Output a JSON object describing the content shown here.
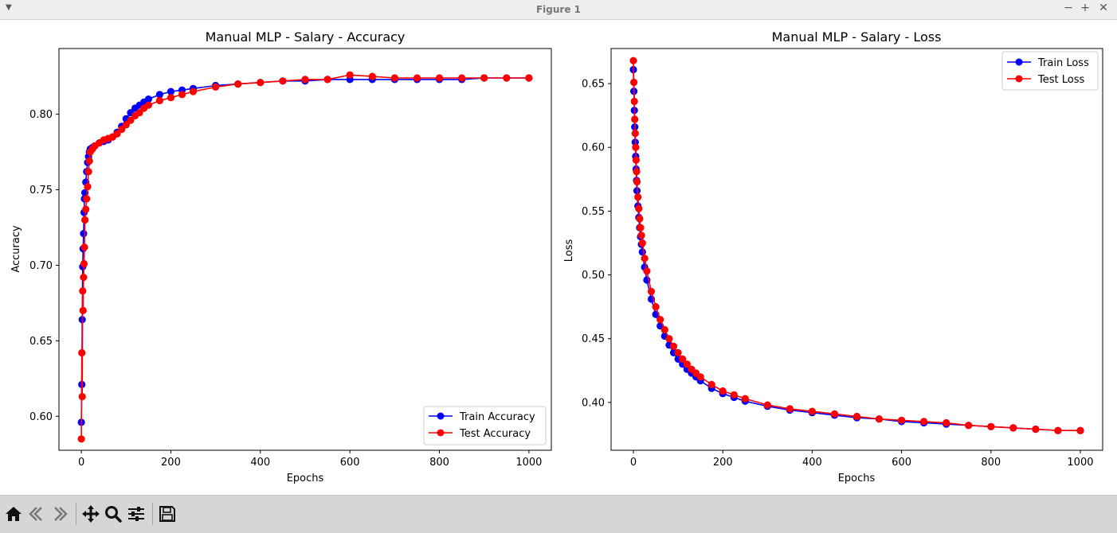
{
  "window": {
    "title": "Figure 1",
    "menu_icon": "chevron-down-icon",
    "buttons": [
      {
        "name": "minimize-button",
        "glyph": "−"
      },
      {
        "name": "maximize-button",
        "glyph": "+"
      },
      {
        "name": "close-button",
        "glyph": "✕"
      }
    ]
  },
  "toolbar": {
    "tools": [
      {
        "name": "home-button",
        "icon": "home-icon"
      },
      {
        "name": "back-button",
        "icon": "arrow-left-icon"
      },
      {
        "name": "forward-button",
        "icon": "arrow-right-icon"
      },
      {
        "name": "pan-button",
        "icon": "move-icon"
      },
      {
        "name": "zoom-button",
        "icon": "magnifier-icon"
      },
      {
        "name": "configure-subplots-button",
        "icon": "sliders-icon"
      },
      {
        "name": "save-button",
        "icon": "floppy-disk-icon"
      }
    ]
  },
  "colors": {
    "train": "#0000ff",
    "test": "#ff0000"
  },
  "chart_data": [
    {
      "type": "line",
      "title": "Manual MLP - Salary - Accuracy",
      "xlabel": "Epochs",
      "ylabel": "Accuracy",
      "xlim": [
        -50,
        1050
      ],
      "ylim": [
        0.5775,
        0.8435
      ],
      "xticks": [
        0,
        200,
        400,
        600,
        800,
        1000
      ],
      "xtick_labels": [
        "0",
        "200",
        "400",
        "600",
        "800",
        "1000"
      ],
      "yticks": [
        0.6,
        0.65,
        0.7,
        0.75,
        0.8
      ],
      "ytick_labels": [
        "0.60",
        "0.65",
        "0.70",
        "0.75",
        "0.80"
      ],
      "legend_position": "lower right",
      "grid": false,
      "series": [
        {
          "name": "Train Accuracy",
          "x": [
            0,
            1,
            2,
            3,
            4,
            5,
            6,
            7,
            8,
            10,
            12,
            14,
            16,
            18,
            20,
            25,
            30,
            40,
            50,
            60,
            70,
            80,
            90,
            100,
            110,
            120,
            130,
            140,
            150,
            175,
            200,
            225,
            250,
            300,
            350,
            400,
            450,
            500,
            550,
            600,
            650,
            700,
            750,
            800,
            850,
            900,
            950,
            1000
          ],
          "y": [
            0.596,
            0.621,
            0.664,
            0.699,
            0.711,
            0.721,
            0.735,
            0.744,
            0.748,
            0.755,
            0.762,
            0.768,
            0.772,
            0.775,
            0.777,
            0.778,
            0.779,
            0.781,
            0.782,
            0.783,
            0.785,
            0.788,
            0.792,
            0.797,
            0.801,
            0.804,
            0.806,
            0.808,
            0.81,
            0.813,
            0.815,
            0.816,
            0.817,
            0.819,
            0.82,
            0.821,
            0.822,
            0.822,
            0.823,
            0.823,
            0.823,
            0.823,
            0.823,
            0.823,
            0.823,
            0.824,
            0.824,
            0.824
          ]
        },
        {
          "name": "Test Accuracy",
          "x": [
            0,
            1,
            2,
            3,
            4,
            5,
            6,
            7,
            8,
            10,
            12,
            14,
            16,
            18,
            20,
            25,
            30,
            40,
            50,
            60,
            70,
            80,
            90,
            100,
            110,
            120,
            130,
            140,
            150,
            175,
            200,
            225,
            250,
            300,
            350,
            400,
            450,
            500,
            550,
            600,
            650,
            700,
            750,
            800,
            850,
            900,
            950,
            1000
          ],
          "y": [
            0.585,
            0.642,
            0.613,
            0.683,
            0.67,
            0.692,
            0.701,
            0.712,
            0.73,
            0.737,
            0.744,
            0.752,
            0.762,
            0.769,
            0.775,
            0.777,
            0.779,
            0.781,
            0.783,
            0.784,
            0.785,
            0.787,
            0.79,
            0.793,
            0.796,
            0.799,
            0.801,
            0.804,
            0.806,
            0.809,
            0.811,
            0.813,
            0.815,
            0.818,
            0.82,
            0.821,
            0.822,
            0.823,
            0.823,
            0.826,
            0.825,
            0.824,
            0.824,
            0.824,
            0.824,
            0.824,
            0.824,
            0.824
          ]
        }
      ]
    },
    {
      "type": "line",
      "title": "Manual MLP - Salary - Loss",
      "xlabel": "Epochs",
      "ylabel": "Loss",
      "xlim": [
        -50,
        1050
      ],
      "ylim": [
        0.3625,
        0.6775
      ],
      "xticks": [
        0,
        200,
        400,
        600,
        800,
        1000
      ],
      "xtick_labels": [
        "0",
        "200",
        "400",
        "600",
        "800",
        "1000"
      ],
      "yticks": [
        0.4,
        0.45,
        0.5,
        0.55,
        0.6,
        0.65
      ],
      "ytick_labels": [
        "0.40",
        "0.45",
        "0.50",
        "0.55",
        "0.60",
        "0.65"
      ],
      "legend_position": "upper right",
      "grid": false,
      "series": [
        {
          "name": "Train Loss",
          "x": [
            0,
            1,
            2,
            3,
            4,
            5,
            6,
            7,
            8,
            10,
            12,
            14,
            16,
            18,
            20,
            25,
            30,
            40,
            50,
            60,
            70,
            80,
            90,
            100,
            110,
            120,
            130,
            140,
            150,
            175,
            200,
            225,
            250,
            300,
            350,
            400,
            450,
            500,
            550,
            600,
            650,
            700,
            750,
            800,
            850,
            900,
            950,
            1000
          ],
          "y": [
            0.661,
            0.644,
            0.629,
            0.616,
            0.604,
            0.593,
            0.583,
            0.574,
            0.566,
            0.554,
            0.545,
            0.537,
            0.53,
            0.524,
            0.518,
            0.506,
            0.496,
            0.481,
            0.469,
            0.46,
            0.452,
            0.445,
            0.439,
            0.434,
            0.43,
            0.426,
            0.423,
            0.42,
            0.417,
            0.411,
            0.407,
            0.404,
            0.401,
            0.397,
            0.394,
            0.392,
            0.39,
            0.388,
            0.387,
            0.385,
            0.384,
            0.383,
            0.382,
            0.381,
            0.38,
            0.379,
            0.378,
            0.378
          ]
        },
        {
          "name": "Test Loss",
          "x": [
            0,
            1,
            2,
            3,
            4,
            5,
            6,
            7,
            8,
            10,
            12,
            14,
            16,
            18,
            20,
            25,
            30,
            40,
            50,
            60,
            70,
            80,
            90,
            100,
            110,
            120,
            130,
            140,
            150,
            175,
            200,
            225,
            250,
            300,
            350,
            400,
            450,
            500,
            550,
            600,
            650,
            700,
            750,
            800,
            850,
            900,
            950,
            1000
          ],
          "y": [
            0.668,
            0.651,
            0.636,
            0.622,
            0.611,
            0.6,
            0.59,
            0.581,
            0.573,
            0.561,
            0.552,
            0.544,
            0.537,
            0.531,
            0.525,
            0.513,
            0.503,
            0.487,
            0.475,
            0.465,
            0.457,
            0.45,
            0.444,
            0.439,
            0.434,
            0.43,
            0.426,
            0.423,
            0.42,
            0.414,
            0.409,
            0.406,
            0.403,
            0.398,
            0.395,
            0.393,
            0.391,
            0.389,
            0.387,
            0.386,
            0.385,
            0.384,
            0.382,
            0.381,
            0.38,
            0.379,
            0.378,
            0.378
          ]
        }
      ]
    }
  ]
}
